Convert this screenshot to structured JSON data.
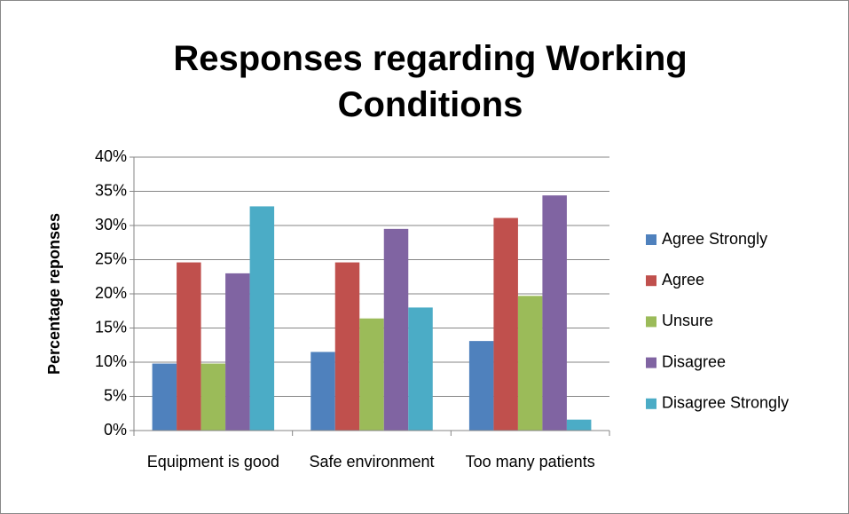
{
  "chart_data": {
    "type": "bar",
    "title": "Responses regarding Working Conditions",
    "y_label": "Percentage reponses",
    "categories": [
      "Equipment is good",
      "Safe environment",
      "Too many patients"
    ],
    "series": [
      {
        "name": "Agree Strongly",
        "color": "#4f81bd",
        "values": [
          9.8,
          11.5,
          13.1
        ]
      },
      {
        "name": "Agree",
        "color": "#c0504d",
        "values": [
          24.6,
          24.6,
          31.1
        ]
      },
      {
        "name": "Unsure",
        "color": "#9bbb59",
        "values": [
          9.8,
          16.4,
          19.7
        ]
      },
      {
        "name": "Disagree",
        "color": "#8064a2",
        "values": [
          23,
          29.5,
          34.4
        ]
      },
      {
        "name": "Disagree Strongly",
        "color": "#4bacc6",
        "values": [
          32.8,
          18,
          1.6
        ]
      }
    ],
    "ylim": [
      0,
      40
    ],
    "yticks": [
      {
        "value": 0,
        "label": "0%"
      },
      {
        "value": 5,
        "label": "5%"
      },
      {
        "value": 10,
        "label": "10%"
      },
      {
        "value": 15,
        "label": "15%"
      },
      {
        "value": 20,
        "label": "20%"
      },
      {
        "value": 25,
        "label": "25%"
      },
      {
        "value": 30,
        "label": "30%"
      },
      {
        "value": 35,
        "label": "35%"
      },
      {
        "value": 40,
        "label": "40%"
      }
    ],
    "grid": true,
    "legend": "right"
  }
}
